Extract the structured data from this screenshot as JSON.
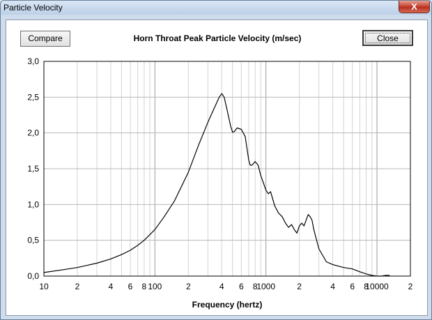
{
  "window": {
    "title": "Particle Velocity",
    "close_glyph": "X"
  },
  "toolbar": {
    "compare_label": "Compare",
    "close_label": "Close"
  },
  "chart_data": {
    "type": "line",
    "title": "Horn Throat Peak Particle Velocity (m/sec)",
    "xlabel": "Frequency (hertz)",
    "ylabel": "",
    "x_scale": "log",
    "xlim": [
      10,
      20000
    ],
    "ylim": [
      0,
      3.0
    ],
    "grid": true,
    "y_ticks": [
      "0,0",
      "0,5",
      "1,0",
      "1,5",
      "2,0",
      "2,5",
      "3,0"
    ],
    "x_ticks": [
      {
        "value": 10,
        "label": "10"
      },
      {
        "value": 20,
        "label": "2"
      },
      {
        "value": 40,
        "label": "4"
      },
      {
        "value": 60,
        "label": "6"
      },
      {
        "value": 80,
        "label": "8"
      },
      {
        "value": 100,
        "label": "100"
      },
      {
        "value": 200,
        "label": "2"
      },
      {
        "value": 400,
        "label": "4"
      },
      {
        "value": 600,
        "label": "6"
      },
      {
        "value": 800,
        "label": "8"
      },
      {
        "value": 1000,
        "label": "1000"
      },
      {
        "value": 2000,
        "label": "2"
      },
      {
        "value": 4000,
        "label": "4"
      },
      {
        "value": 6000,
        "label": "6"
      },
      {
        "value": 8000,
        "label": "8"
      },
      {
        "value": 10000,
        "label": "10000"
      },
      {
        "value": 20000,
        "label": "2"
      }
    ],
    "series": [
      {
        "x": [
          10,
          15,
          20,
          30,
          40,
          50,
          60,
          70,
          80,
          100,
          120,
          150,
          200,
          250,
          300,
          350,
          380,
          400,
          420,
          450,
          480,
          500,
          520,
          550,
          600,
          650,
          700,
          720,
          750,
          800,
          850,
          900,
          950,
          1000,
          1050,
          1100,
          1200,
          1300,
          1400,
          1500,
          1600,
          1700,
          1800,
          1900,
          2000,
          2100,
          2200,
          2300,
          2400,
          2500,
          2600,
          2700,
          3000,
          3500,
          4000,
          5000,
          6000,
          7000,
          8000,
          9000,
          10000,
          11000,
          12000,
          13000
        ],
        "y": [
          0.05,
          0.09,
          0.12,
          0.18,
          0.24,
          0.3,
          0.36,
          0.43,
          0.5,
          0.65,
          0.82,
          1.05,
          1.45,
          1.85,
          2.15,
          2.38,
          2.5,
          2.55,
          2.5,
          2.3,
          2.1,
          2.01,
          2.02,
          2.07,
          2.05,
          1.95,
          1.62,
          1.55,
          1.55,
          1.6,
          1.55,
          1.4,
          1.3,
          1.2,
          1.15,
          1.18,
          0.98,
          0.88,
          0.83,
          0.74,
          0.68,
          0.72,
          0.65,
          0.6,
          0.7,
          0.74,
          0.7,
          0.78,
          0.86,
          0.83,
          0.78,
          0.65,
          0.38,
          0.2,
          0.16,
          0.12,
          0.1,
          0.06,
          0.03,
          0.01,
          0.0,
          0.0,
          0.01,
          0.01
        ]
      }
    ]
  }
}
